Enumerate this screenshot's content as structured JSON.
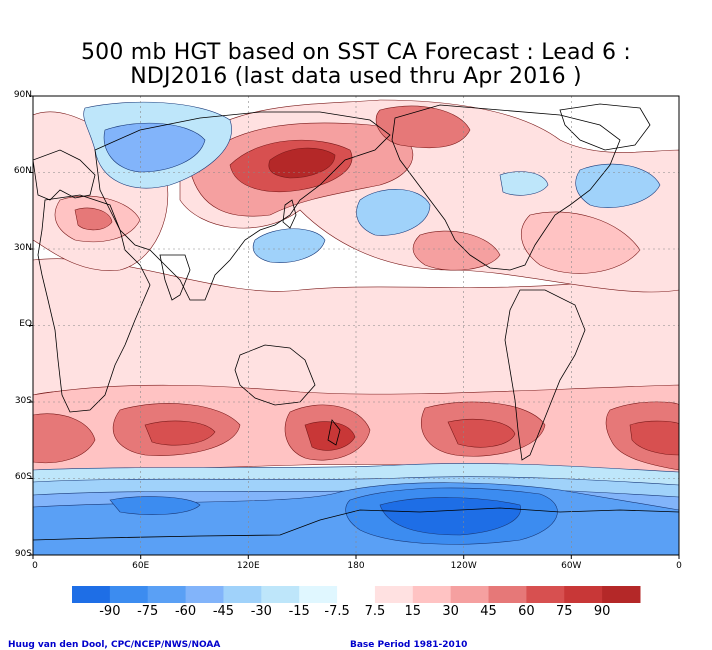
{
  "title_line1": "500 mb HGT based on SST CA Forecast : Lead 6 :",
  "title_line2": "NDJ2016 (last data used thru Apr 2016 )",
  "lat_labels": [
    "90N",
    "60N",
    "30N",
    "EQ",
    "30S",
    "60S",
    "90S"
  ],
  "lon_labels": [
    "0",
    "60E",
    "120E",
    "180",
    "120W",
    "60W",
    "0"
  ],
  "colorbar": {
    "levels": [
      "-90",
      "-75",
      "-60",
      "-45",
      "-30",
      "-15",
      "-7.5",
      "7.5",
      "15",
      "30",
      "45",
      "60",
      "75",
      "90"
    ],
    "colors": [
      "#1e6ee6",
      "#3c8cf0",
      "#5aa0f5",
      "#82b4fa",
      "#a0d2fa",
      "#bee6fa",
      "#ffffff",
      "#ffe1e1",
      "#ffc3c3",
      "#f5a0a0",
      "#e67878",
      "#d75050",
      "#c83737",
      "#b42828"
    ]
  },
  "footer_left": "Huug van den Dool, CPC/NCEP/NWS/NOAA",
  "footer_right": "Base Period 1981-2010"
}
